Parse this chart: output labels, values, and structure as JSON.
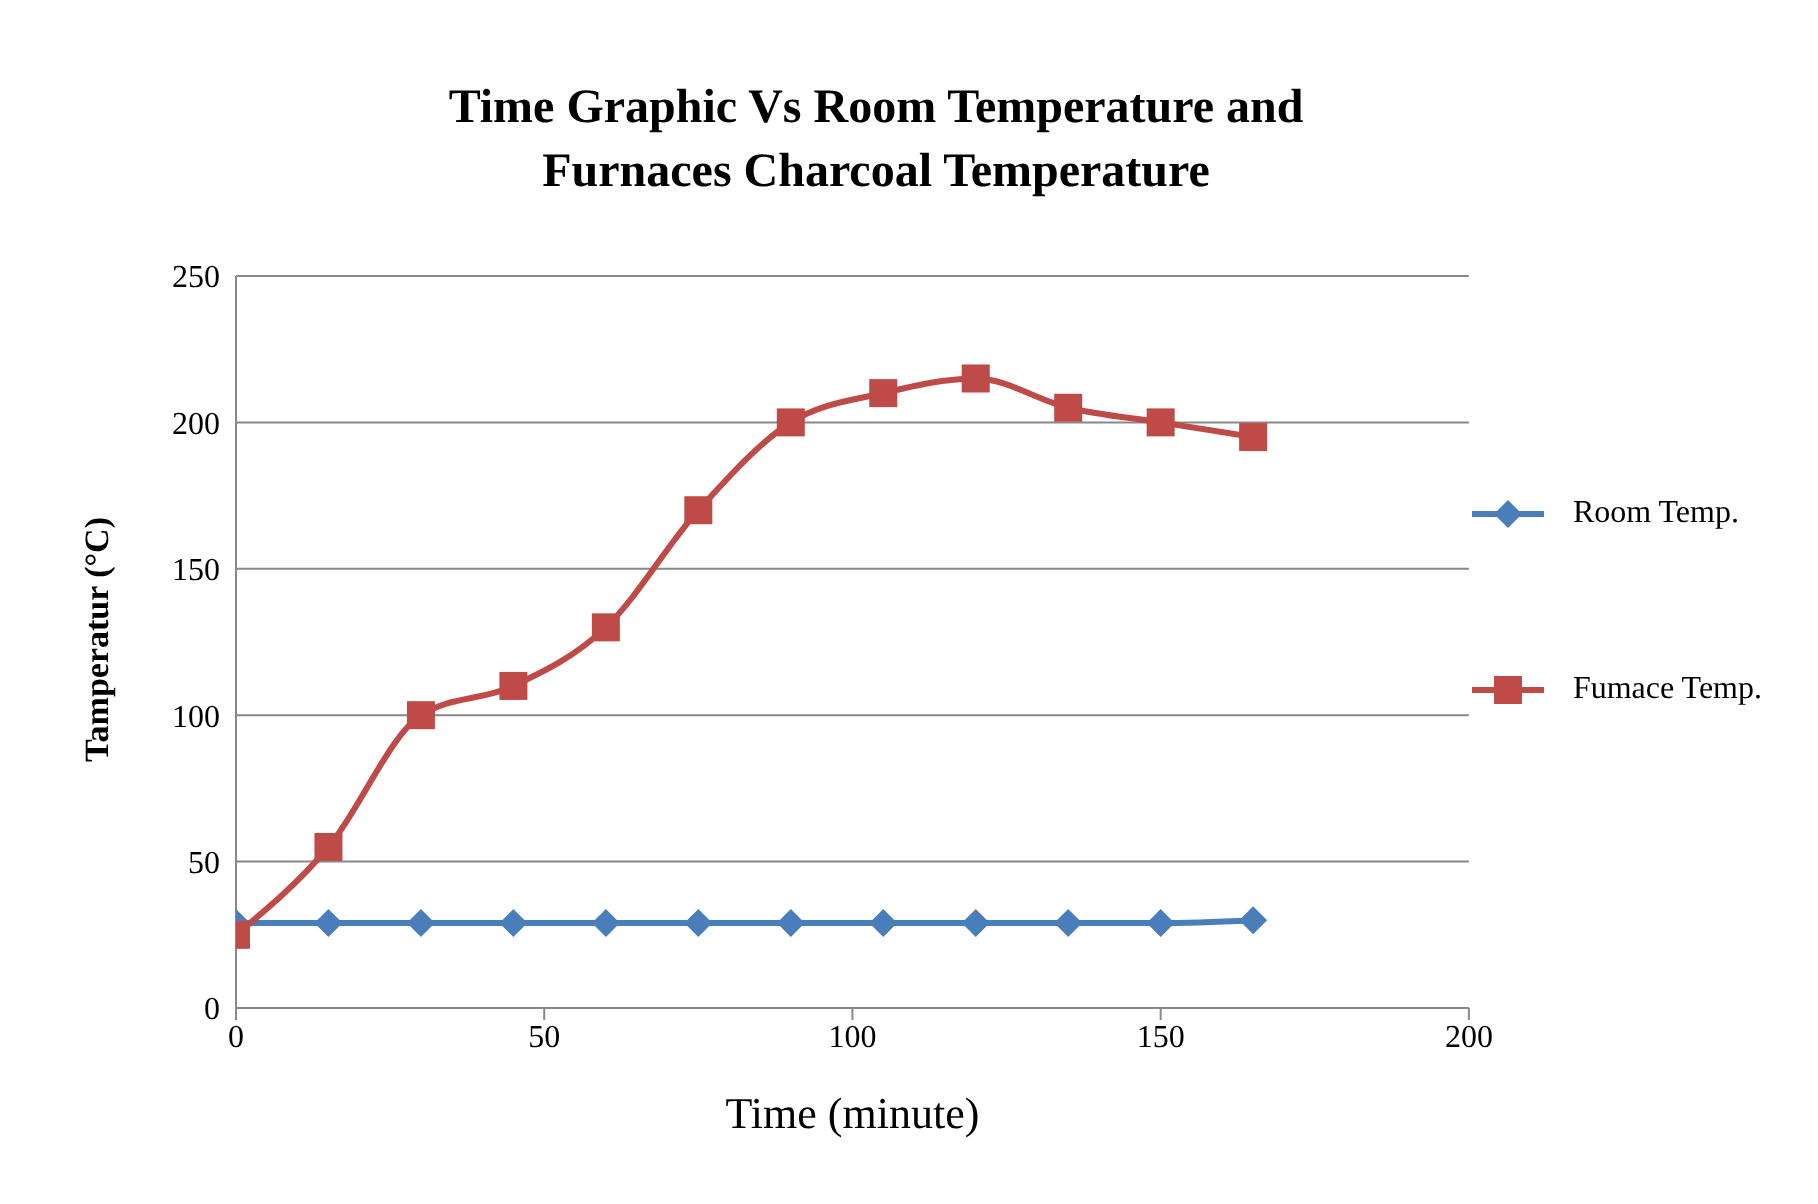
{
  "chart_data": {
    "type": "line",
    "title": "Time Graphic Vs Room Temperature and\nFurnaces Charcoal Temperature",
    "xlabel": "Time (minute)",
    "ylabel": "Tamperatur (°C)",
    "x": [
      0,
      15,
      30,
      45,
      60,
      75,
      90,
      105,
      120,
      135,
      150,
      165
    ],
    "series": [
      {
        "name": "Room Temp.",
        "color": "#4a7ebb",
        "marker": "diamond",
        "values": [
          29,
          29,
          29,
          29,
          29,
          29,
          29,
          29,
          29,
          29,
          29,
          30
        ]
      },
      {
        "name": "Fumace Temp.",
        "color": "#be4b48",
        "marker": "square",
        "values": [
          25,
          55,
          100,
          110,
          130,
          170,
          200,
          210,
          215,
          205,
          200,
          195
        ]
      }
    ],
    "xlim": [
      0,
      200
    ],
    "xticks": [
      0,
      50,
      100,
      150,
      200
    ],
    "ylim": [
      0,
      250
    ],
    "yticks": [
      0,
      50,
      100,
      150,
      200,
      250
    ],
    "grid": "y",
    "legend": "right",
    "line_style": "solid"
  }
}
